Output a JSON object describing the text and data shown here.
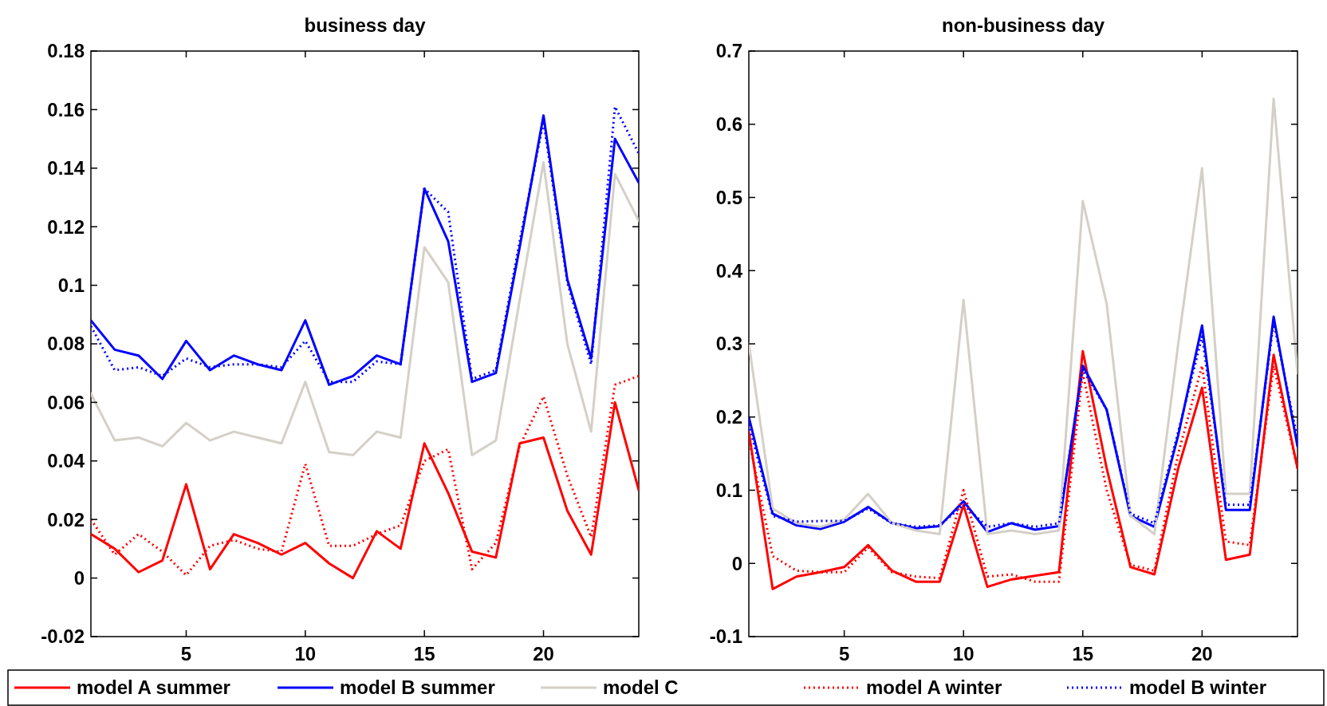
{
  "chart_data": [
    {
      "type": "line",
      "title": "business day",
      "x": [
        1,
        2,
        3,
        4,
        5,
        6,
        7,
        8,
        9,
        10,
        11,
        12,
        13,
        14,
        15,
        16,
        17,
        18,
        19,
        20,
        21,
        22,
        23,
        24
      ],
      "xlim": [
        1,
        24
      ],
      "xticks": [
        5,
        10,
        15,
        20
      ],
      "ylim": [
        -0.02,
        0.18
      ],
      "yticks": [
        -0.02,
        0,
        0.02,
        0.04,
        0.06,
        0.08,
        0.1,
        0.12,
        0.14,
        0.16,
        0.18
      ],
      "legend": "bottom",
      "grid": false,
      "marker": "none",
      "series": [
        {
          "name": "model A summer",
          "color": "#ff0000",
          "line_style": "solid",
          "values": [
            0.015,
            0.01,
            0.002,
            0.006,
            0.032,
            0.003,
            0.015,
            0.012,
            0.008,
            0.012,
            0.005,
            0.0,
            0.016,
            0.01,
            0.046,
            0.029,
            0.009,
            0.007,
            0.046,
            0.048,
            0.023,
            0.008,
            0.06,
            0.03
          ]
        },
        {
          "name": "model B summer",
          "color": "#0000ff",
          "line_style": "solid",
          "values": [
            0.088,
            0.078,
            0.076,
            0.068,
            0.081,
            0.071,
            0.076,
            0.073,
            0.071,
            0.088,
            0.066,
            0.069,
            0.076,
            0.073,
            0.133,
            0.115,
            0.067,
            0.07,
            0.113,
            0.158,
            0.102,
            0.075,
            0.15,
            0.135
          ]
        },
        {
          "name": "model C",
          "color": "#d4d0c8",
          "line_style": "solid",
          "values": [
            0.063,
            0.047,
            0.048,
            0.045,
            0.053,
            0.047,
            0.05,
            0.048,
            0.046,
            0.067,
            0.043,
            0.042,
            0.05,
            0.048,
            0.113,
            0.101,
            0.042,
            0.047,
            0.095,
            0.142,
            0.08,
            0.05,
            0.138,
            0.122
          ]
        },
        {
          "name": "model A winter",
          "color": "#ff0000",
          "line_style": "dotted",
          "values": [
            0.02,
            0.008,
            0.015,
            0.009,
            0.001,
            0.011,
            0.013,
            0.01,
            0.009,
            0.039,
            0.011,
            0.011,
            0.015,
            0.018,
            0.04,
            0.044,
            0.003,
            0.012,
            0.045,
            0.062,
            0.035,
            0.014,
            0.066,
            0.069
          ]
        },
        {
          "name": "model B winter",
          "color": "#0000ff",
          "line_style": "dotted",
          "values": [
            0.086,
            0.071,
            0.072,
            0.069,
            0.075,
            0.072,
            0.073,
            0.073,
            0.072,
            0.081,
            0.067,
            0.067,
            0.074,
            0.073,
            0.133,
            0.125,
            0.068,
            0.071,
            0.115,
            0.156,
            0.101,
            0.073,
            0.161,
            0.145
          ]
        }
      ]
    },
    {
      "type": "line",
      "title": "non-business day",
      "x": [
        1,
        2,
        3,
        4,
        5,
        6,
        7,
        8,
        9,
        10,
        11,
        12,
        13,
        14,
        15,
        16,
        17,
        18,
        19,
        20,
        21,
        22,
        23,
        24
      ],
      "xlim": [
        1,
        24
      ],
      "xticks": [
        5,
        10,
        15,
        20
      ],
      "ylim": [
        -0.1,
        0.7
      ],
      "yticks": [
        -0.1,
        0,
        0.1,
        0.2,
        0.3,
        0.4,
        0.5,
        0.6,
        0.7
      ],
      "grid": false,
      "marker": "none",
      "series": [
        {
          "color": "#ff0000",
          "line_style": "solid",
          "values": [
            0.18,
            -0.035,
            -0.018,
            -0.012,
            -0.005,
            0.025,
            -0.01,
            -0.025,
            -0.025,
            0.08,
            -0.032,
            -0.022,
            -0.017,
            -0.012,
            0.29,
            0.13,
            -0.005,
            -0.015,
            0.13,
            0.24,
            0.005,
            0.012,
            0.285,
            0.13
          ]
        },
        {
          "color": "#0000ff",
          "line_style": "solid",
          "values": [
            0.2,
            0.068,
            0.052,
            0.047,
            0.057,
            0.077,
            0.055,
            0.048,
            0.051,
            0.085,
            0.043,
            0.055,
            0.046,
            0.051,
            0.27,
            0.21,
            0.065,
            0.05,
            0.175,
            0.325,
            0.073,
            0.073,
            0.337,
            0.16
          ]
        },
        {
          "color": "#d4d0c8",
          "line_style": "solid",
          "values": [
            0.3,
            0.075,
            0.055,
            0.05,
            0.06,
            0.095,
            0.055,
            0.045,
            0.04,
            0.36,
            0.04,
            0.045,
            0.04,
            0.045,
            0.495,
            0.355,
            0.065,
            0.04,
            0.3,
            0.54,
            0.095,
            0.095,
            0.635,
            0.26
          ]
        },
        {
          "color": "#ff0000",
          "line_style": "dotted",
          "values": [
            0.17,
            0.01,
            -0.01,
            -0.012,
            -0.012,
            0.022,
            -0.012,
            -0.018,
            -0.02,
            0.1,
            -0.018,
            -0.015,
            -0.025,
            -0.025,
            0.26,
            0.1,
            -0.002,
            -0.01,
            0.15,
            0.27,
            0.03,
            0.025,
            0.27,
            0.13
          ]
        },
        {
          "color": "#0000ff",
          "line_style": "dotted",
          "values": [
            0.19,
            0.065,
            0.057,
            0.058,
            0.058,
            0.075,
            0.055,
            0.05,
            0.052,
            0.08,
            0.05,
            0.055,
            0.05,
            0.055,
            0.265,
            0.21,
            0.068,
            0.055,
            0.18,
            0.31,
            0.08,
            0.08,
            0.33,
            0.17
          ]
        }
      ]
    }
  ]
}
